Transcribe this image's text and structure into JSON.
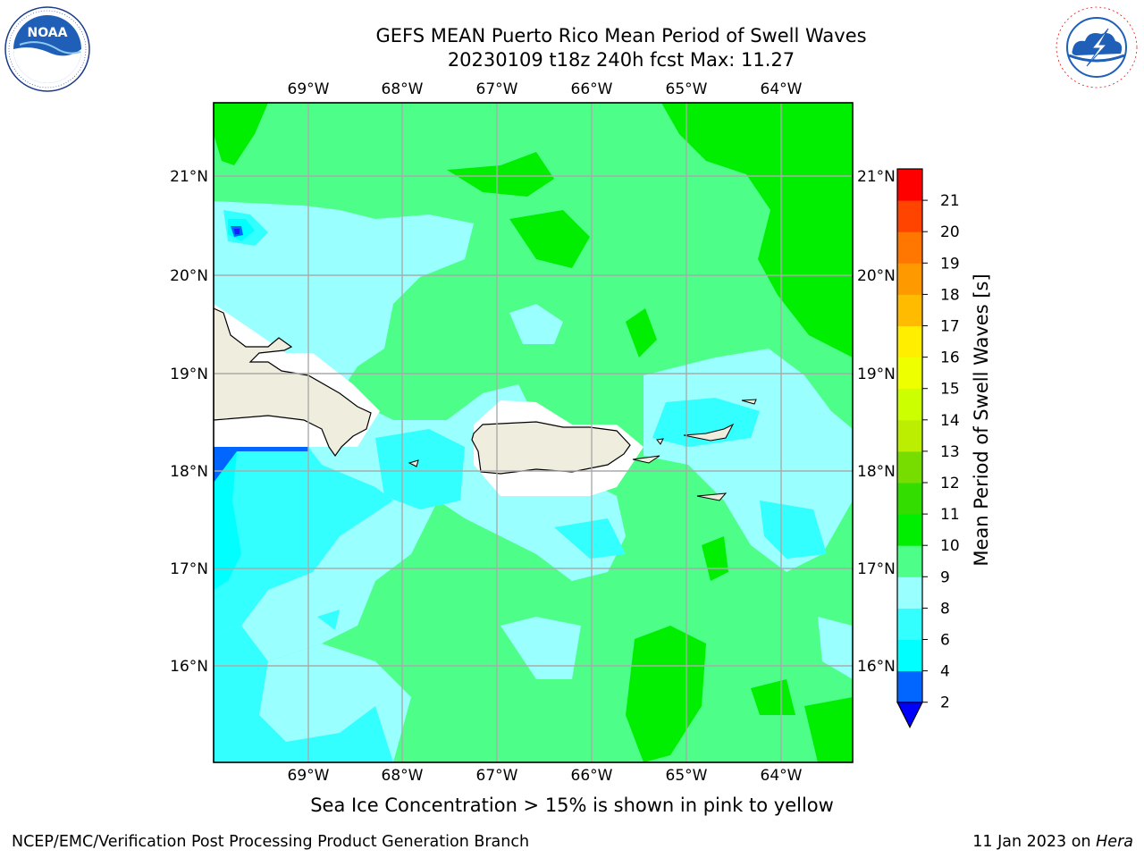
{
  "header": {
    "title_line1": "GEFS MEAN Puerto Rico Mean Period of Swell Waves",
    "title_line2": "20230109 t18z 240h fcst   Max: 11.27"
  },
  "map": {
    "lon_labels": [
      "69°W",
      "68°W",
      "67°W",
      "66°W",
      "65°W",
      "64°W"
    ],
    "lat_labels": [
      "21°N",
      "20°N",
      "19°N",
      "18°N",
      "17°N",
      "16°N"
    ],
    "land_color": "#efedde",
    "water_base_color": "#66ff99"
  },
  "colorbar": {
    "label": "Mean Period of Swell Waves [s]",
    "ticks": [
      "2",
      "4",
      "6",
      "8",
      "9",
      "10",
      "11",
      "12",
      "13",
      "14",
      "15",
      "16",
      "17",
      "18",
      "19",
      "20",
      "21"
    ],
    "colors": [
      "#0066ff",
      "#00ffff",
      "#33ffff",
      "#99ffff",
      "#4dff88",
      "#00ee00",
      "#33dd00",
      "#77dd00",
      "#bbee00",
      "#ccff00",
      "#eeff00",
      "#ffee00",
      "#ffbb00",
      "#ff9900",
      "#ff7700",
      "#ff4400",
      "#ff0000"
    ],
    "under_color": "#0000ff"
  },
  "notes": {
    "sea_ice": "Sea Ice Concentration > 15% is shown in pink to yellow"
  },
  "footer": {
    "left": "NCEP/EMC/Verification Post Processing Product Generation Branch",
    "date": "11 Jan 2023 on",
    "machine": "Hera"
  },
  "logos": {
    "noaa_text": "NOAA",
    "nws_text": "NATIONAL WEATHER SERVICE"
  }
}
